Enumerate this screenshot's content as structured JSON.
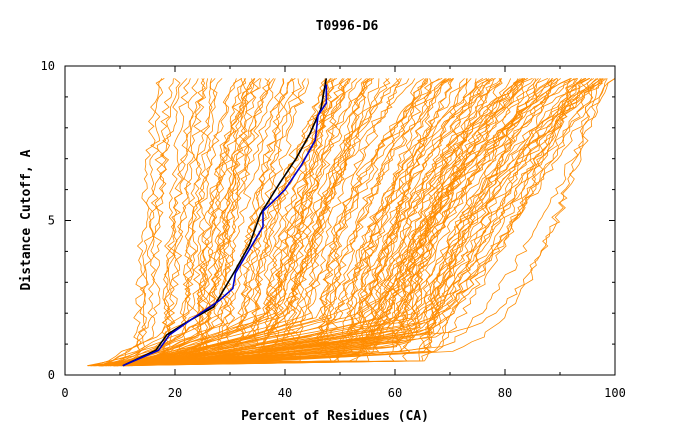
{
  "chart_data": {
    "type": "line",
    "title": "T0996-D6",
    "xlabel": "Percent of Residues (CA)",
    "ylabel": "Distance Cutoff, A",
    "xlim": [
      0,
      100
    ],
    "ylim": [
      0,
      10
    ],
    "x_ticks": [
      "0",
      "20",
      "40",
      "60",
      "80",
      "100"
    ],
    "y_ticks": [
      "0",
      "5",
      "10"
    ],
    "grid": false,
    "legend": "none",
    "colors": {
      "models": "#ff8c00",
      "highlight_black": "#000000",
      "highlight_blue": "#0000cc"
    },
    "highlight_series": [
      {
        "color": "#000000",
        "x": [
          10.5,
          16.5,
          18.5,
          22,
          27,
          31,
          33.5,
          35.5,
          39,
          42,
          44.5,
          46.5,
          47.5
        ],
        "y": [
          0.3,
          0.8,
          1.3,
          1.7,
          2.2,
          3.4,
          4.2,
          5.2,
          6.2,
          7.0,
          7.8,
          8.6,
          9.6
        ]
      },
      {
        "color": "#0000cc",
        "x": [
          10.5,
          17,
          19,
          23,
          28,
          30.5,
          31,
          34,
          36,
          36,
          40,
          43,
          45.5,
          46,
          47.5,
          47.5
        ],
        "y": [
          0.3,
          0.8,
          1.3,
          1.8,
          2.4,
          2.8,
          3.3,
          4.2,
          4.8,
          5.3,
          6.0,
          6.8,
          7.6,
          8.4,
          8.8,
          9.4
        ]
      }
    ],
    "model_series_description_only": false
  }
}
